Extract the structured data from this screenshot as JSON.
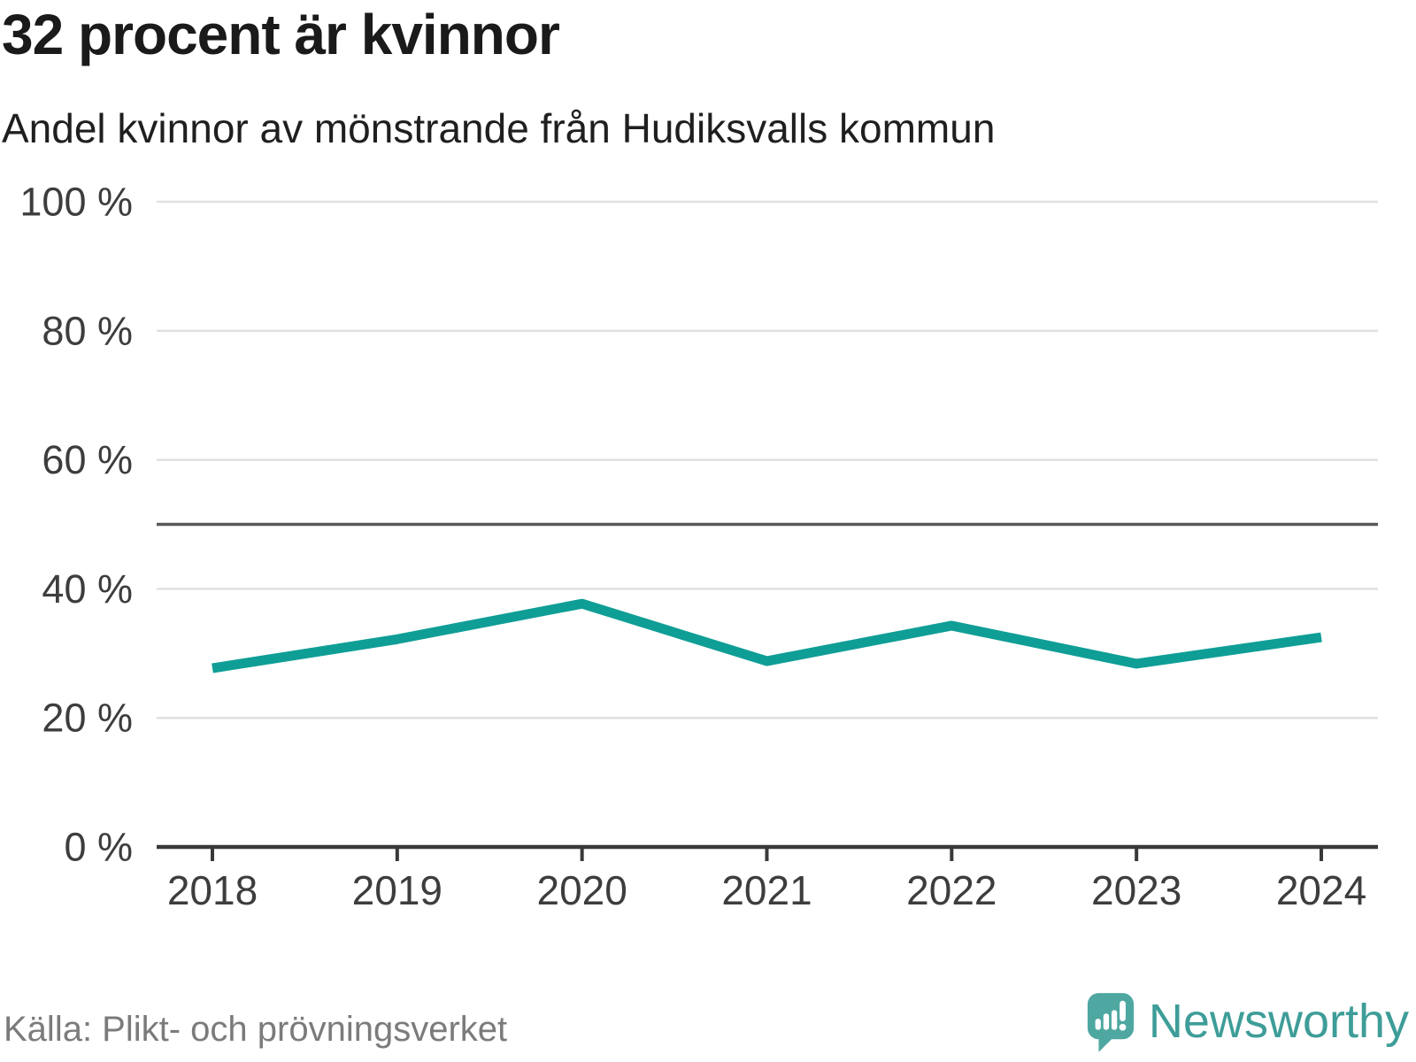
{
  "header": {
    "title": "32 procent är kvinnor",
    "subtitle": "Andel kvinnor av mönstrande från Hudiksvalls kommun"
  },
  "chart_data": {
    "type": "line",
    "title": "32 procent är kvinnor",
    "subtitle": "Andel kvinnor av mönstrande från Hudiksvalls kommun",
    "categories": [
      "2018",
      "2019",
      "2020",
      "2021",
      "2022",
      "2023",
      "2024"
    ],
    "series": [
      {
        "name": "Andel kvinnor av mönstrande",
        "values": [
          27.7,
          32.2,
          37.7,
          28.8,
          34.3,
          28.4,
          32.5
        ]
      }
    ],
    "ylim": [
      0,
      100
    ],
    "yticks": [
      0,
      20,
      40,
      60,
      80,
      100
    ],
    "ytick_labels": [
      "0 %",
      "20 %",
      "40 %",
      "60 %",
      "80 %",
      "100 %"
    ],
    "reference_line": 50,
    "grid": "horizontal",
    "legend": "none",
    "colors": {
      "line": "#0f9e96",
      "gridline": "#e0e0e0",
      "reference_line": "#58585a",
      "axis": "#393939",
      "tick_text": "#3d3d3d"
    }
  },
  "footer": {
    "source": "Källa: Plikt- och prövningsverket",
    "brand": "Newsworthy",
    "brand_color": "#3e9d98",
    "icon_color": "#4ea7a1"
  }
}
